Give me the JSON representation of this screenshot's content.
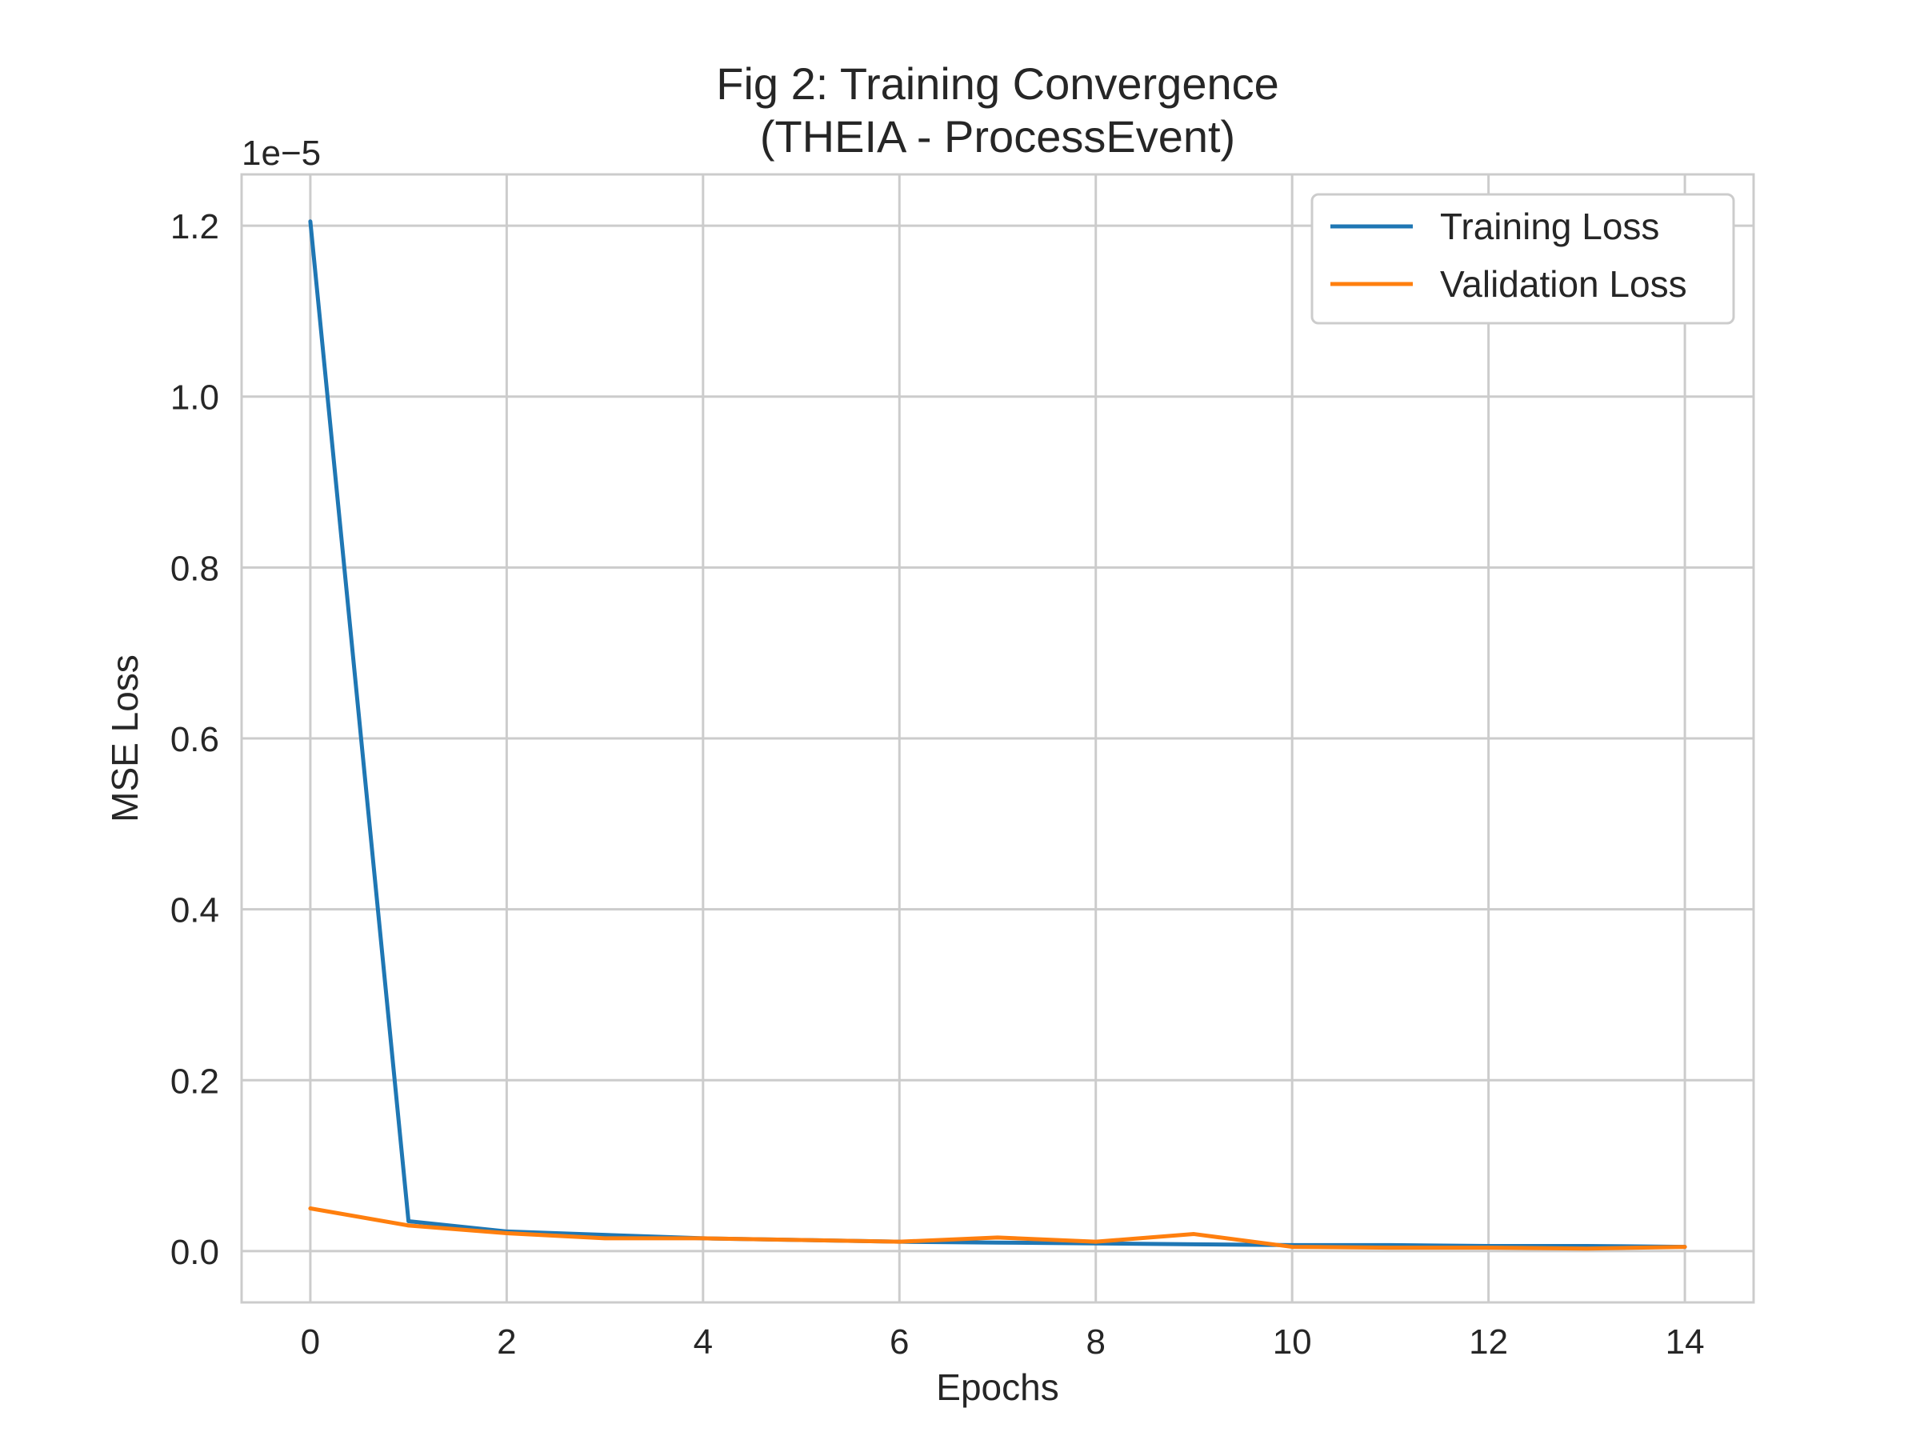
{
  "chart_data": {
    "type": "line",
    "title": [
      "Fig 2: Training Convergence",
      "(THEIA - ProcessEvent)"
    ],
    "xlabel": "Epochs",
    "ylabel": "MSE Loss",
    "y_offset_label": "1e−5",
    "x": [
      0,
      1,
      2,
      3,
      4,
      5,
      6,
      7,
      8,
      9,
      10,
      11,
      12,
      13,
      14
    ],
    "xlim": [
      -0.7,
      14.7
    ],
    "ylim": [
      -0.06,
      1.26
    ],
    "x_ticks": [
      0,
      2,
      4,
      6,
      8,
      10,
      12,
      14
    ],
    "x_tick_labels": [
      "0",
      "2",
      "4",
      "6",
      "8",
      "10",
      "12",
      "14"
    ],
    "y_ticks": [
      0.0,
      0.2,
      0.4,
      0.6,
      0.8,
      1.0,
      1.2
    ],
    "y_tick_labels": [
      "0.0",
      "0.2",
      "0.4",
      "0.6",
      "0.8",
      "1.0",
      "1.2"
    ],
    "grid": true,
    "legend": "top-right",
    "series": [
      {
        "name": "Training Loss",
        "color": "#1f77b4",
        "values": [
          1.205,
          0.035,
          0.023,
          0.019,
          0.015,
          0.013,
          0.011,
          0.01,
          0.009,
          0.008,
          0.007,
          0.007,
          0.006,
          0.006,
          0.005
        ]
      },
      {
        "name": "Validation Loss",
        "color": "#ff7f0e",
        "values": [
          0.05,
          0.03,
          0.021,
          0.015,
          0.015,
          0.013,
          0.011,
          0.016,
          0.011,
          0.02,
          0.005,
          0.004,
          0.004,
          0.003,
          0.005
        ]
      }
    ]
  }
}
